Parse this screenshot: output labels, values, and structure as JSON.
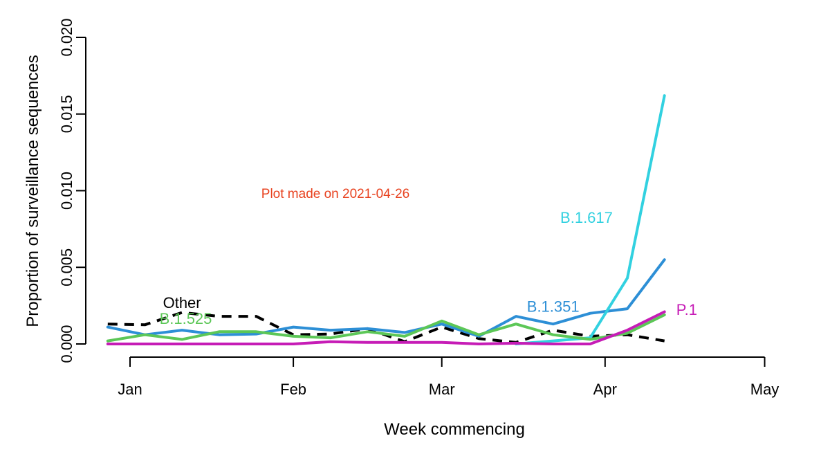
{
  "chart_data": {
    "type": "line",
    "title": "",
    "xlabel": "Week commencing",
    "ylabel": "Proportion of surveillance sequences",
    "annotation": "Plot made on 2021-04-26",
    "x_ticks": [
      "Jan",
      "Feb",
      "Mar",
      "Apr",
      "May"
    ],
    "y_ticks": [
      "0.000",
      "0.005",
      "0.010",
      "0.015",
      "0.020"
    ],
    "ylim": [
      0,
      0.02
    ],
    "x_domain": [
      0,
      17.5
    ],
    "x_tick_positions": [
      0,
      4.4,
      8.4,
      12.8,
      17.1
    ],
    "series": [
      {
        "name": "Other",
        "color": "#000000",
        "dashed": true,
        "x": [
          -0.6,
          0.4,
          1.4,
          2.4,
          3.4,
          4.4,
          5.4,
          6.4,
          7.4,
          8.4,
          9.4,
          10.4,
          11.4,
          12.4,
          13.4
        ],
        "values": [
          0.0013,
          0.00125,
          0.00205,
          0.0018,
          0.0018,
          0.0006,
          0.00065,
          0.001,
          0.00015,
          0.0011,
          0.00035,
          0.0001,
          0.0009,
          0.0005,
          0.0006
        ],
        "extra_x": [
          14.4
        ],
        "extra_values": [
          0.0002
        ]
      },
      {
        "name": "B.1.351",
        "color": "#2d8fd6",
        "dashed": false,
        "x": [
          -0.6,
          0.4,
          1.4,
          2.4,
          3.4,
          4.4,
          5.4,
          6.4,
          7.4,
          8.4,
          9.4,
          10.4,
          11.4,
          12.4,
          13.4,
          14.4
        ],
        "values": [
          0.0011,
          0.0006,
          0.0009,
          0.0006,
          0.00065,
          0.0011,
          0.0009,
          0.001,
          0.00075,
          0.0013,
          0.0005,
          0.0018,
          0.0013,
          0.002,
          0.0023,
          0.0055
        ]
      },
      {
        "name": "B.1.617",
        "color": "#32d1e0",
        "dashed": false,
        "x": [
          10.4,
          11.4,
          12.4,
          13.4,
          14.4
        ],
        "values": [
          0.0,
          0.0002,
          0.0004,
          0.0043,
          0.0162
        ]
      },
      {
        "name": "B.1.525",
        "color": "#5cc757",
        "dashed": false,
        "x": [
          -0.6,
          0.4,
          1.4,
          2.4,
          3.4,
          4.4,
          5.4,
          6.4,
          7.4,
          8.4,
          9.4,
          10.4,
          11.4,
          12.4,
          13.4,
          14.4
        ],
        "values": [
          0.0002,
          0.0006,
          0.0003,
          0.0008,
          0.0008,
          0.0005,
          0.0004,
          0.0008,
          0.0005,
          0.0015,
          0.0006,
          0.0013,
          0.0006,
          0.0003,
          0.0007,
          0.0019
        ]
      },
      {
        "name": "P.1",
        "color": "#c61cb6",
        "dashed": false,
        "x": [
          -0.6,
          0.4,
          1.4,
          2.4,
          3.4,
          4.4,
          5.4,
          6.4,
          7.4,
          8.4,
          9.4,
          10.4,
          11.4,
          12.4,
          13.4,
          14.4
        ],
        "values": [
          0.0,
          0.0,
          0.0,
          0.0,
          0.0,
          0.0,
          0.00015,
          0.0001,
          0.0001,
          0.0001,
          0.0,
          5e-05,
          0.0,
          0.0,
          0.0009,
          0.0021
        ]
      }
    ],
    "series_labels": [
      {
        "name": "Other",
        "color": "#000000",
        "x": 1.4,
        "y": 0.00235
      },
      {
        "name": "B.1.525",
        "color": "#5cc757",
        "x": 1.5,
        "y": 0.0013
      },
      {
        "name": "B.1.351",
        "color": "#2d8fd6",
        "x": 11.4,
        "y": 0.0021
      },
      {
        "name": "B.1.617",
        "color": "#32d1e0",
        "x": 12.3,
        "y": 0.0079
      },
      {
        "name": "P.1",
        "color": "#c61cb6",
        "x": 15.0,
        "y": 0.0019
      }
    ]
  }
}
